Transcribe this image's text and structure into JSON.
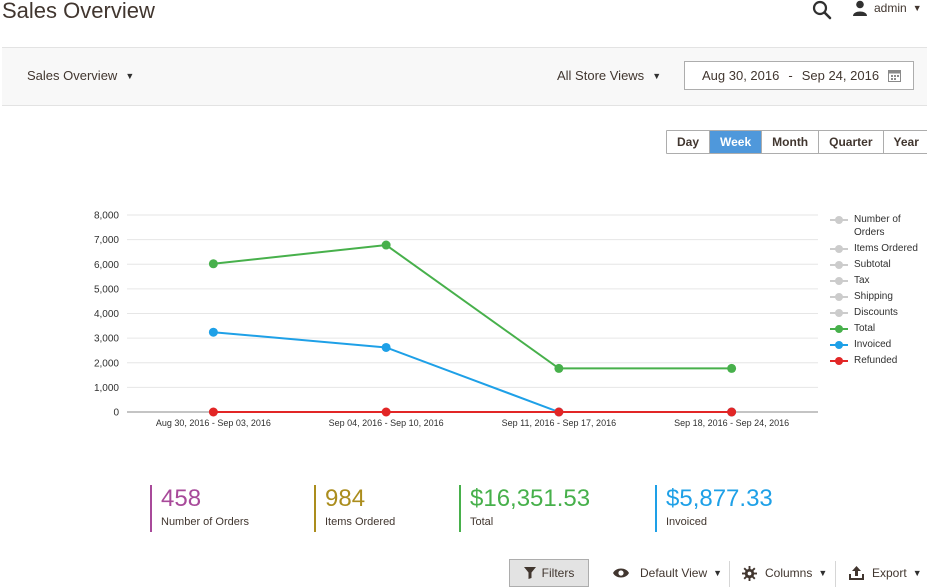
{
  "header": {
    "title": "Sales Overview",
    "search_icon": "search-icon",
    "user": "admin"
  },
  "toolbar": {
    "report_select": "Sales Overview",
    "store_select": "All Store Views",
    "date_from": "Aug 30, 2016",
    "date_to": "Sep 24, 2016",
    "date_separator": "-"
  },
  "periods": [
    {
      "label": "Day",
      "active": false
    },
    {
      "label": "Week",
      "active": true
    },
    {
      "label": "Month",
      "active": false
    },
    {
      "label": "Quarter",
      "active": false
    },
    {
      "label": "Year",
      "active": false
    }
  ],
  "chart_data": {
    "type": "line",
    "categories": [
      "Aug 30, 2016 - Sep 03, 2016",
      "Sep 04, 2016 - Sep 10, 2016",
      "Sep 11, 2016 - Sep 17, 2016",
      "Sep 18, 2016 - Sep 24, 2016"
    ],
    "ylim": [
      0,
      8000
    ],
    "yticks": [
      0,
      1000,
      2000,
      3000,
      4000,
      5000,
      6000,
      7000,
      8000
    ],
    "ytick_labels": [
      "0",
      "1,000",
      "2,000",
      "3,000",
      "4,000",
      "5,000",
      "6,000",
      "7,000",
      "8,000"
    ],
    "grid": true,
    "legend_position": "right",
    "series": [
      {
        "name": "Number of Orders",
        "color": "#cccccc",
        "values": null
      },
      {
        "name": "Items Ordered",
        "color": "#cccccc",
        "values": null
      },
      {
        "name": "Subtotal",
        "color": "#cccccc",
        "values": null
      },
      {
        "name": "Tax",
        "color": "#cccccc",
        "values": null
      },
      {
        "name": "Shipping",
        "color": "#cccccc",
        "values": null
      },
      {
        "name": "Discounts",
        "color": "#cccccc",
        "values": null
      },
      {
        "name": "Total",
        "color": "#47b04b",
        "values": [
          6020,
          6780,
          1770,
          1770
        ]
      },
      {
        "name": "Invoiced",
        "color": "#1ea0e7",
        "values": [
          3240,
          2620,
          0,
          0
        ]
      },
      {
        "name": "Refunded",
        "color": "#e22626",
        "values": [
          0,
          0,
          0,
          0
        ]
      }
    ]
  },
  "totals": [
    {
      "value": "458",
      "label": "Number of Orders",
      "color": "#a84a9a"
    },
    {
      "value": "984",
      "label": "Items Ordered",
      "color": "#ab8d1d"
    },
    {
      "value": "$16,351.53",
      "label": "Total",
      "color": "#47b04b"
    },
    {
      "value": "$5,877.33",
      "label": "Invoiced",
      "color": "#1ea0e7"
    }
  ],
  "grid_toolbar": {
    "filters": "Filters",
    "view": "Default View",
    "columns": "Columns",
    "export": "Export"
  }
}
